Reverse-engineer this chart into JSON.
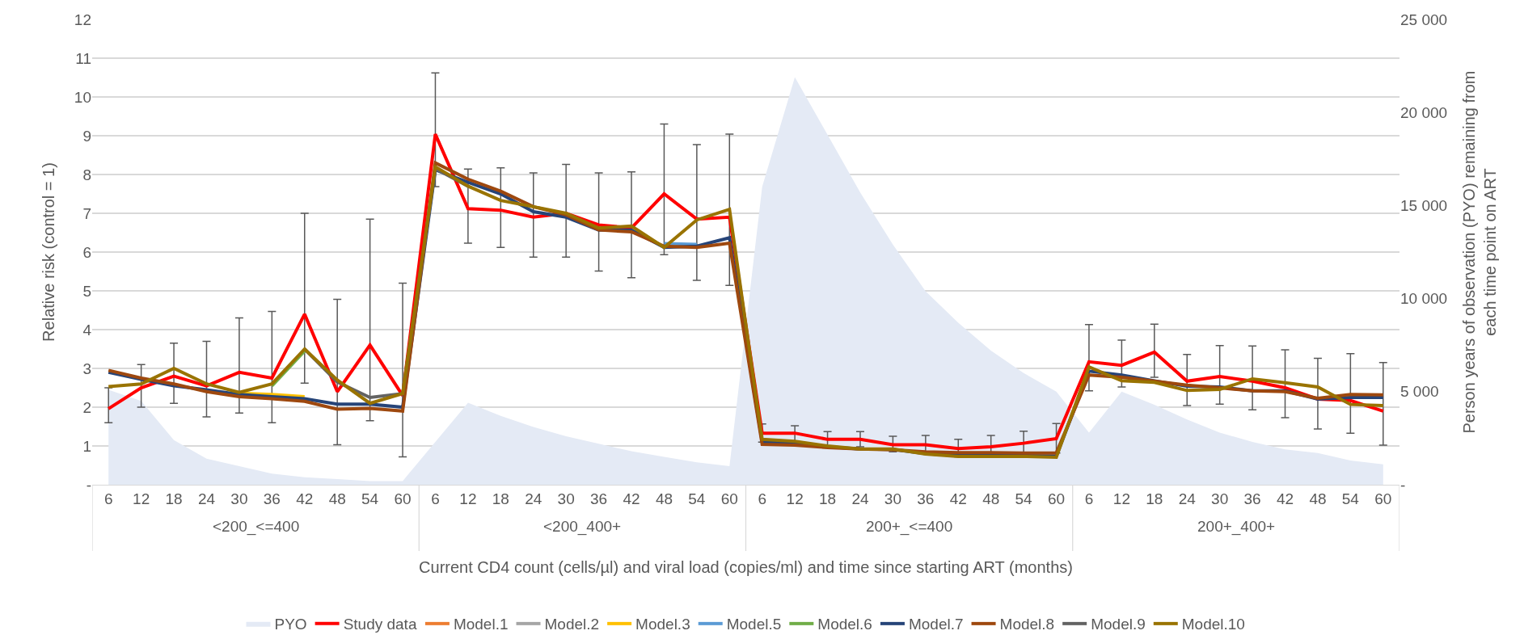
{
  "chart_data": {
    "type": "line",
    "ylabel": "Relative risk (control = 1)",
    "y2label": "Person years of observation (PYO) remaining from each time point on ART",
    "xlabel": "Current CD4 count (cells/µl) and viral load (copies/ml) and time since starting ART (months)",
    "annotations": [
      "<200_<=400",
      "<200_400+",
      "200+_<=400",
      "200+_400+"
    ],
    "categories": [
      "6",
      "12",
      "18",
      "24",
      "30",
      "36",
      "42",
      "48",
      "54",
      "60",
      "6",
      "12",
      "18",
      "24",
      "30",
      "36",
      "42",
      "48",
      "54",
      "60",
      "6",
      "12",
      "18",
      "24",
      "30",
      "36",
      "42",
      "48",
      "54",
      "60",
      "6",
      "12",
      "18",
      "24",
      "30",
      "36",
      "42",
      "48",
      "54",
      "60"
    ],
    "ylim": [
      0,
      12
    ],
    "yticks": [
      {
        "value": 0,
        "label": "-"
      },
      1,
      2,
      3,
      4,
      5,
      6,
      7,
      8,
      9,
      10,
      11,
      12
    ],
    "y2lim": [
      0,
      25000
    ],
    "y2ticks": [
      {
        "value": 0,
        "label": "-"
      },
      {
        "value": 5000,
        "label": "5 000"
      },
      {
        "value": 10000,
        "label": "10 000"
      },
      {
        "value": 15000,
        "label": "15 000"
      },
      {
        "value": 20000,
        "label": "20 000"
      },
      {
        "value": 25000,
        "label": "25 000"
      }
    ],
    "grid": "y",
    "legend": "bottom",
    "marker": "none",
    "line_style": "solid",
    "series": [
      {
        "name": "PYO",
        "type": "area",
        "axis": "y2",
        "color": "#e4eaf5",
        "values": [
          5100,
          4500,
          2400,
          1400,
          1000,
          600,
          400,
          300,
          200,
          200,
          2300,
          4400,
          3700,
          3100,
          2600,
          2200,
          1800,
          1500,
          1200,
          1000,
          16000,
          21900,
          18800,
          15700,
          12900,
          10400,
          8700,
          7200,
          6000,
          5000,
          2800,
          5000,
          4300,
          3500,
          2800,
          2300,
          1900,
          1700,
          1300,
          1100
        ]
      },
      {
        "name": "Study data",
        "color": "#ff0000",
        "values": [
          1.96,
          2.5,
          2.8,
          2.55,
          2.9,
          2.75,
          4.4,
          2.4,
          3.6,
          2.3,
          9.04,
          7.12,
          7.08,
          6.9,
          7.0,
          6.7,
          6.62,
          7.5,
          6.85,
          6.9,
          1.33,
          1.33,
          1.17,
          1.17,
          1.03,
          1.03,
          0.93,
          0.98,
          1.07,
          1.19,
          3.17,
          3.08,
          3.42,
          2.67,
          2.79,
          2.67,
          2.5,
          2.21,
          2.17,
          1.9
        ],
        "errors": [
          [
            1.6,
            2.5
          ],
          [
            2.0,
            3.1
          ],
          [
            2.1,
            3.65
          ],
          [
            1.75,
            3.7
          ],
          [
            1.85,
            4.3
          ],
          [
            1.6,
            4.47
          ],
          [
            2.62,
            7.0
          ],
          [
            1.03,
            4.78
          ],
          [
            1.65,
            6.85
          ],
          [
            0.72,
            5.2
          ],
          [
            7.69,
            10.62
          ],
          [
            6.23,
            8.14
          ],
          [
            6.12,
            8.17
          ],
          [
            5.87,
            8.04
          ],
          [
            5.87,
            8.26
          ],
          [
            5.51,
            8.04
          ],
          [
            5.34,
            8.07
          ],
          [
            5.93,
            9.3
          ],
          [
            5.27,
            8.77
          ],
          [
            5.14,
            9.04
          ],
          [
            1.1,
            1.57
          ],
          [
            1.12,
            1.52
          ],
          [
            0.98,
            1.37
          ],
          [
            0.98,
            1.37
          ],
          [
            0.85,
            1.25
          ],
          [
            0.82,
            1.27
          ],
          [
            0.72,
            1.17
          ],
          [
            0.72,
            1.27
          ],
          [
            0.78,
            1.38
          ],
          [
            0.82,
            1.58
          ],
          [
            2.42,
            4.13
          ],
          [
            2.52,
            3.73
          ],
          [
            2.77,
            4.14
          ],
          [
            2.04,
            3.36
          ],
          [
            2.08,
            3.59
          ],
          [
            1.93,
            3.58
          ],
          [
            1.73,
            3.48
          ],
          [
            1.44,
            3.26
          ],
          [
            1.33,
            3.38
          ],
          [
            1.02,
            3.15
          ]
        ]
      },
      {
        "name": "Model.1",
        "color": "#ed7d31",
        "values": [
          null,
          null,
          null,
          null,
          null,
          null,
          null,
          null,
          null,
          null,
          null,
          null,
          null,
          null,
          null,
          null,
          null,
          null,
          null,
          null,
          null,
          null,
          null,
          null,
          null,
          null,
          null,
          null,
          null,
          null,
          null,
          null,
          null,
          null,
          null,
          null,
          null,
          null,
          null,
          null
        ]
      },
      {
        "name": "Model.2",
        "color": "#a5a5a5",
        "values": [
          null,
          null,
          null,
          null,
          null,
          null,
          null,
          null,
          null,
          null,
          null,
          null,
          null,
          null,
          null,
          null,
          null,
          null,
          null,
          null,
          null,
          null,
          null,
          null,
          null,
          null,
          null,
          null,
          null,
          null,
          null,
          null,
          null,
          null,
          null,
          null,
          null,
          null,
          null,
          null
        ]
      },
      {
        "name": "Model.3",
        "color": "#ffc000",
        "values": [
          null,
          null,
          null,
          null,
          2.36,
          2.33,
          2.27,
          null,
          null,
          null,
          null,
          null,
          null,
          null,
          null,
          null,
          null,
          null,
          null,
          null,
          null,
          null,
          null,
          null,
          null,
          null,
          null,
          null,
          null,
          null,
          null,
          null,
          null,
          null,
          null,
          null,
          null,
          null,
          null,
          null
        ]
      },
      {
        "name": "Model.5",
        "color": "#5b9bd5",
        "values": [
          null,
          null,
          null,
          null,
          null,
          null,
          null,
          null,
          null,
          null,
          null,
          null,
          null,
          null,
          null,
          null,
          null,
          6.22,
          6.2,
          null,
          null,
          null,
          null,
          null,
          null,
          null,
          null,
          null,
          null,
          null,
          null,
          null,
          null,
          null,
          null,
          null,
          null,
          null,
          null,
          null
        ]
      },
      {
        "name": "Model.6",
        "color": "#70ad47",
        "values": [
          null,
          null,
          null,
          null,
          null,
          2.55,
          3.45,
          null,
          null,
          null,
          null,
          null,
          null,
          null,
          null,
          null,
          null,
          null,
          null,
          null,
          null,
          null,
          null,
          null,
          null,
          null,
          null,
          null,
          null,
          null,
          null,
          null,
          null,
          null,
          null,
          null,
          null,
          null,
          null,
          null
        ]
      },
      {
        "name": "Model.7",
        "color": "#264478",
        "values": [
          2.9,
          2.72,
          2.55,
          2.45,
          2.33,
          2.27,
          2.22,
          2.08,
          2.08,
          2.0,
          8.12,
          7.8,
          7.5,
          7.04,
          6.9,
          6.57,
          6.57,
          6.12,
          6.15,
          6.37,
          1.1,
          1.06,
          0.98,
          0.92,
          0.91,
          0.8,
          0.75,
          0.75,
          0.75,
          0.74,
          2.93,
          2.83,
          2.68,
          2.54,
          2.52,
          2.42,
          2.42,
          2.21,
          2.25,
          2.25
        ]
      },
      {
        "name": "Model.8",
        "color": "#9e480e",
        "values": [
          2.95,
          2.75,
          2.6,
          2.4,
          2.27,
          2.22,
          2.15,
          1.95,
          1.97,
          1.9,
          8.3,
          7.88,
          7.57,
          7.17,
          6.96,
          6.57,
          6.52,
          6.15,
          6.12,
          6.23,
          1.04,
          1.02,
          0.96,
          0.92,
          0.9,
          0.85,
          0.83,
          0.83,
          0.82,
          0.82,
          2.83,
          2.77,
          2.67,
          2.57,
          2.5,
          2.42,
          2.4,
          2.23,
          2.33,
          2.32
        ]
      },
      {
        "name": "Model.9",
        "color": "#636363",
        "values": [
          null,
          null,
          null,
          null,
          null,
          null,
          3.5,
          2.65,
          2.25,
          2.35,
          8.15,
          7.7,
          null,
          null,
          null,
          null,
          null,
          null,
          null,
          null,
          null,
          null,
          null,
          null,
          null,
          null,
          null,
          null,
          null,
          null,
          null,
          null,
          null,
          null,
          null,
          null,
          null,
          null,
          null,
          null
        ]
      },
      {
        "name": "Model.10",
        "color": "#997300",
        "values": [
          2.53,
          2.6,
          3.0,
          2.6,
          2.38,
          2.6,
          3.5,
          2.7,
          2.1,
          2.35,
          8.2,
          7.7,
          7.33,
          7.17,
          7.0,
          6.62,
          6.67,
          6.12,
          6.83,
          7.1,
          1.17,
          1.12,
          1.0,
          0.92,
          0.92,
          0.79,
          0.73,
          0.73,
          0.73,
          0.71,
          3.04,
          2.68,
          2.64,
          2.43,
          2.46,
          2.73,
          2.63,
          2.52,
          2.07,
          2.04
        ]
      }
    ]
  }
}
